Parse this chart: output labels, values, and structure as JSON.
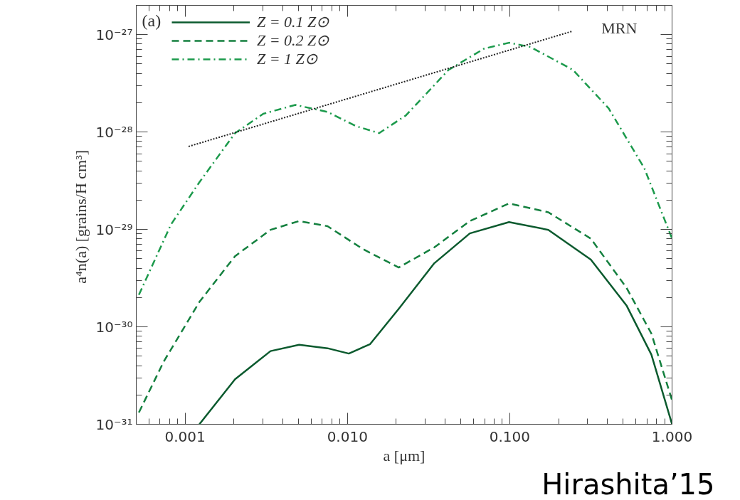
{
  "chart_data": {
    "type": "line",
    "xlabel": "a [μm]",
    "ylabel": "a⁴n(a)  [grains/H cm³]",
    "log": "xy",
    "grid": false,
    "legend": "top left",
    "marker": "none",
    "xlim": [
      0.0005,
      1.0
    ],
    "ylim": [
      1e-31,
      2e-27
    ],
    "xticks": [
      {
        "value": 0.001,
        "label": "0.001"
      },
      {
        "value": 0.01,
        "label": "0.010"
      },
      {
        "value": 0.1,
        "label": "0.100"
      },
      {
        "value": 1.0,
        "label": "1.000"
      }
    ],
    "yticks": [
      {
        "value": 1e-31,
        "label": "10⁻³¹"
      },
      {
        "value": 1e-30,
        "label": "10⁻³⁰"
      },
      {
        "value": 1e-29,
        "label": "10⁻²⁹"
      },
      {
        "value": 1e-28,
        "label": "10⁻²⁸"
      },
      {
        "value": 1e-27,
        "label": "10⁻²⁷"
      }
    ],
    "annotations": [
      "(a)",
      "Hirashita’15"
    ],
    "series": [
      {
        "name": "Z = 0.1 Z⊙",
        "color": "#0b5a2e",
        "line_style": "solid",
        "x": [
          0.001224,
          0.00203,
          0.00336,
          0.00504,
          0.00754,
          0.0102,
          0.0138,
          0.0207,
          0.0343,
          0.0568,
          0.099,
          0.173,
          0.316,
          0.524,
          0.746,
          1.0
        ],
        "values": [
          1e-31,
          2.9e-31,
          5.64e-31,
          6.55e-31,
          6.03e-31,
          5.32e-31,
          6.65e-31,
          1.53e-30,
          4.5e-30,
          9.12e-30,
          1.19e-29,
          9.91e-30,
          4.9e-30,
          1.66e-30,
          5.19e-31,
          1e-31
        ]
      },
      {
        "name": "Z = 0.2 Z⊙",
        "color": "#14803f",
        "line_style": "dashed",
        "x": [
          0.000519,
          0.000738,
          0.001224,
          0.00203,
          0.00336,
          0.00504,
          0.00754,
          0.01248,
          0.0207,
          0.0343,
          0.0568,
          0.099,
          0.173,
          0.316,
          0.524,
          0.746,
          1.0
        ],
        "values": [
          1.32e-31,
          4.4e-31,
          1.8e-30,
          5.32e-30,
          9.91e-30,
          1.22e-29,
          1.08e-29,
          6.28e-30,
          4.07e-30,
          6.55e-30,
          1.22e-29,
          1.85e-29,
          1.5e-29,
          8.05e-30,
          2.52e-30,
          8.53e-31,
          1.76e-31
        ]
      },
      {
        "name": "Z = 1 Z⊙",
        "color": "#1c9a4c",
        "line_style": "dashdot",
        "x": [
          0.000519,
          0.000817,
          0.001224,
          0.00203,
          0.00303,
          0.00478,
          0.00754,
          0.0113,
          0.01567,
          0.0229,
          0.042,
          0.0695,
          0.099,
          0.134,
          0.245,
          0.407,
          0.675,
          1.0
        ],
        "values": [
          2.13e-30,
          1.12e-29,
          3.05e-29,
          9.75e-29,
          1.54e-28,
          1.9e-28,
          1.61e-28,
          1.15e-28,
          9.75e-29,
          1.48e-28,
          4.35e-28,
          7.18e-28,
          8.26e-28,
          7.48e-28,
          4.35e-28,
          1.75e-28,
          4.25e-29,
          8.05e-30
        ]
      },
      {
        "name": "MRN",
        "color": "#222222",
        "line_style": "dotted",
        "x": [
          0.00105,
          0.245
        ],
        "values": [
          7.11e-29,
          1.09e-27
        ]
      }
    ]
  }
}
